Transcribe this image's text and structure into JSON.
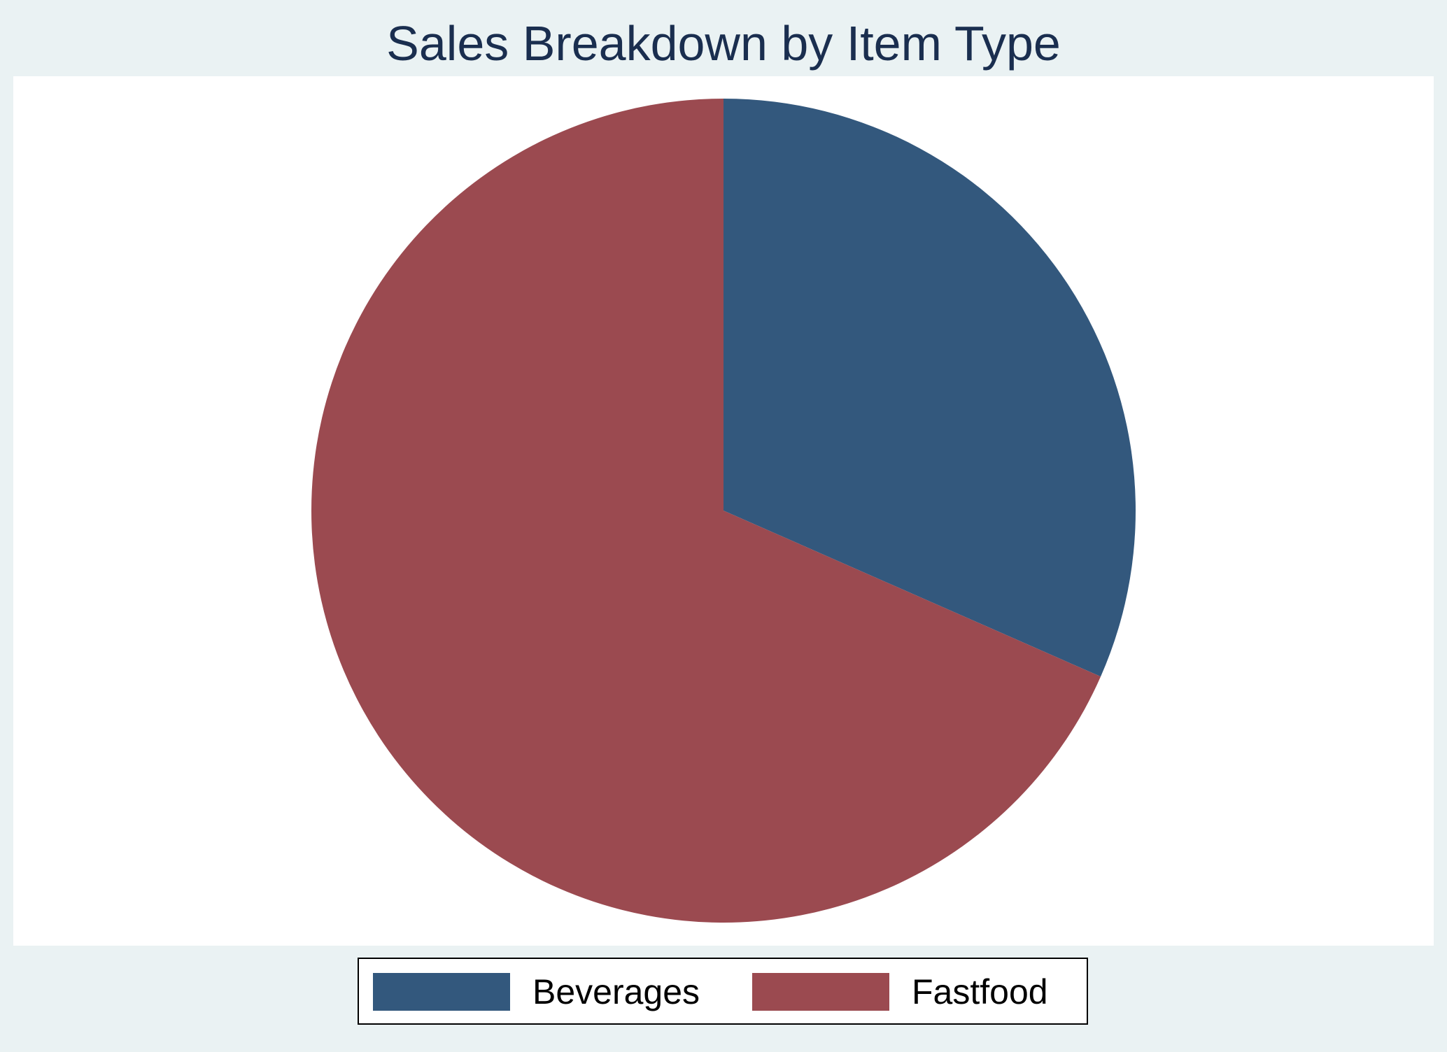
{
  "chart_data": {
    "type": "pie",
    "title": "Sales Breakdown by Item Type",
    "categories": [
      "Beverages",
      "Fastfood"
    ],
    "values": [
      31.6,
      68.4
    ],
    "unit": "percent",
    "start_angle": "12 o'clock",
    "direction": "clockwise",
    "legend_position": "bottom",
    "colors": [
      "#33587d",
      "#9b4a50"
    ]
  },
  "legend": {
    "items": [
      {
        "label": "Beverages",
        "color": "#33587d"
      },
      {
        "label": "Fastfood",
        "color": "#9b4a50"
      }
    ]
  },
  "colors": {
    "background": "#eaf2f3",
    "plot_background": "#ffffff",
    "title": "#1a2e4f"
  }
}
